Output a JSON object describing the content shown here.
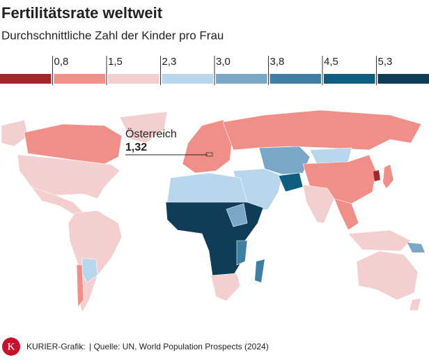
{
  "chart_data": {
    "type": "choropleth",
    "title": "Fertilitätsrate weltweit",
    "subtitle": "Durchschnittliche Zahl der Kinder pro Frau",
    "legend": {
      "breaks": [
        {
          "value": 0.8,
          "label": "0,8"
        },
        {
          "value": 1.5,
          "label": "1,5"
        },
        {
          "value": 2.3,
          "label": "2,3"
        },
        {
          "value": 3.0,
          "label": "3,0"
        },
        {
          "value": 3.8,
          "label": "3,8"
        },
        {
          "value": 4.5,
          "label": "4,5"
        },
        {
          "value": 5.3,
          "label": "5,3"
        }
      ],
      "colors": [
        "#a3282c",
        "#ef8f88",
        "#f3d0cf",
        "#b9d7ec",
        "#7aa6c8",
        "#3f7fa3",
        "#0f5d80",
        "#0f3c57"
      ]
    },
    "annotations": [
      {
        "label": "Österreich",
        "value": 1.32,
        "value_label": "1,32"
      }
    ]
  },
  "footer": {
    "logo": "K",
    "credit": "KURIER-Grafik:",
    "source": "| Quelle: UN, World Population Prospects (2024)"
  }
}
